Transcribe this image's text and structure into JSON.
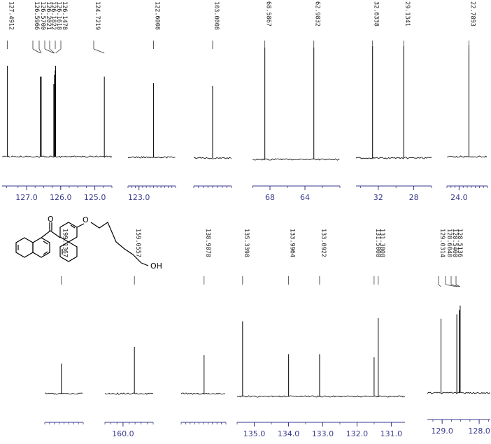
{
  "chart_data": [
    {
      "type": "line",
      "x_unit": "ppm",
      "peaks": [
        127.4912
      ],
      "x_ticks": [],
      "xlim": [
        127.55,
        127.45
      ]
    },
    {
      "type": "line",
      "x_unit": "ppm",
      "peaks": [
        126.5966,
        126.57,
        126.2021,
        126.1822,
        126.1618,
        126.1478,
        124.7219
      ],
      "x_ticks": [
        127.0,
        126.0,
        125.0
      ],
      "xlim": [
        127.45,
        124.5
      ]
    },
    {
      "type": "line",
      "x_unit": "ppm",
      "peaks": [
        122.6008
      ],
      "x_ticks": [
        123.0
      ],
      "xlim": [
        123.3,
        122.0
      ]
    },
    {
      "type": "line",
      "x_unit": "ppm",
      "peaks": [
        103.0008
      ],
      "x_ticks": [],
      "xlim": [
        104.0,
        102.0
      ]
    },
    {
      "type": "line",
      "x_unit": "ppm",
      "peaks": [
        68.5867,
        62.9832
      ],
      "x_ticks": [
        68,
        64
      ],
      "xlim": [
        70.0,
        60.0
      ]
    },
    {
      "type": "line",
      "x_unit": "ppm",
      "peaks": [
        32.6338,
        29.1341
      ],
      "x_ticks": [
        32,
        28
      ],
      "xlim": [
        34.5,
        26.0
      ]
    },
    {
      "type": "line",
      "x_unit": "ppm",
      "peaks": [
        22.7893
      ],
      "x_ticks": [
        24
      ],
      "xlim": [
        25.5,
        20.5
      ]
    },
    {
      "type": "line",
      "x_unit": "ppm",
      "peaks": [
        199.1367
      ],
      "x_ticks": [],
      "xlim": [
        200.0,
        198.0
      ]
    },
    {
      "type": "line",
      "x_unit": "ppm",
      "peaks": [
        159.0557
      ],
      "x_ticks": [
        160
      ],
      "xlim": [
        161.5,
        157.5
      ]
    },
    {
      "type": "line",
      "x_unit": "ppm",
      "peaks": [
        138.9878
      ],
      "x_ticks": [],
      "xlim": [
        139.5,
        138.5
      ]
    },
    {
      "type": "line",
      "x_unit": "ppm",
      "peaks": [
        135.3398,
        133.9964,
        133.0922,
        131.5008,
        131.3808
      ],
      "x_ticks": [
        135.0,
        134.0,
        133.0,
        132.0,
        131.0
      ],
      "xlim": [
        135.5,
        130.6
      ]
    },
    {
      "type": "line",
      "x_unit": "ppm",
      "peaks": [
        129.0314,
        128.604,
        128.5408,
        128.5136
      ],
      "x_ticks": [
        129.0,
        128.0
      ],
      "xlim": [
        129.4,
        127.7
      ]
    }
  ],
  "structure": {
    "oh_label": "OH"
  },
  "style": {
    "trace_color": "#000000",
    "axis_color": "#3a3a8c",
    "label_color": "#222222"
  }
}
